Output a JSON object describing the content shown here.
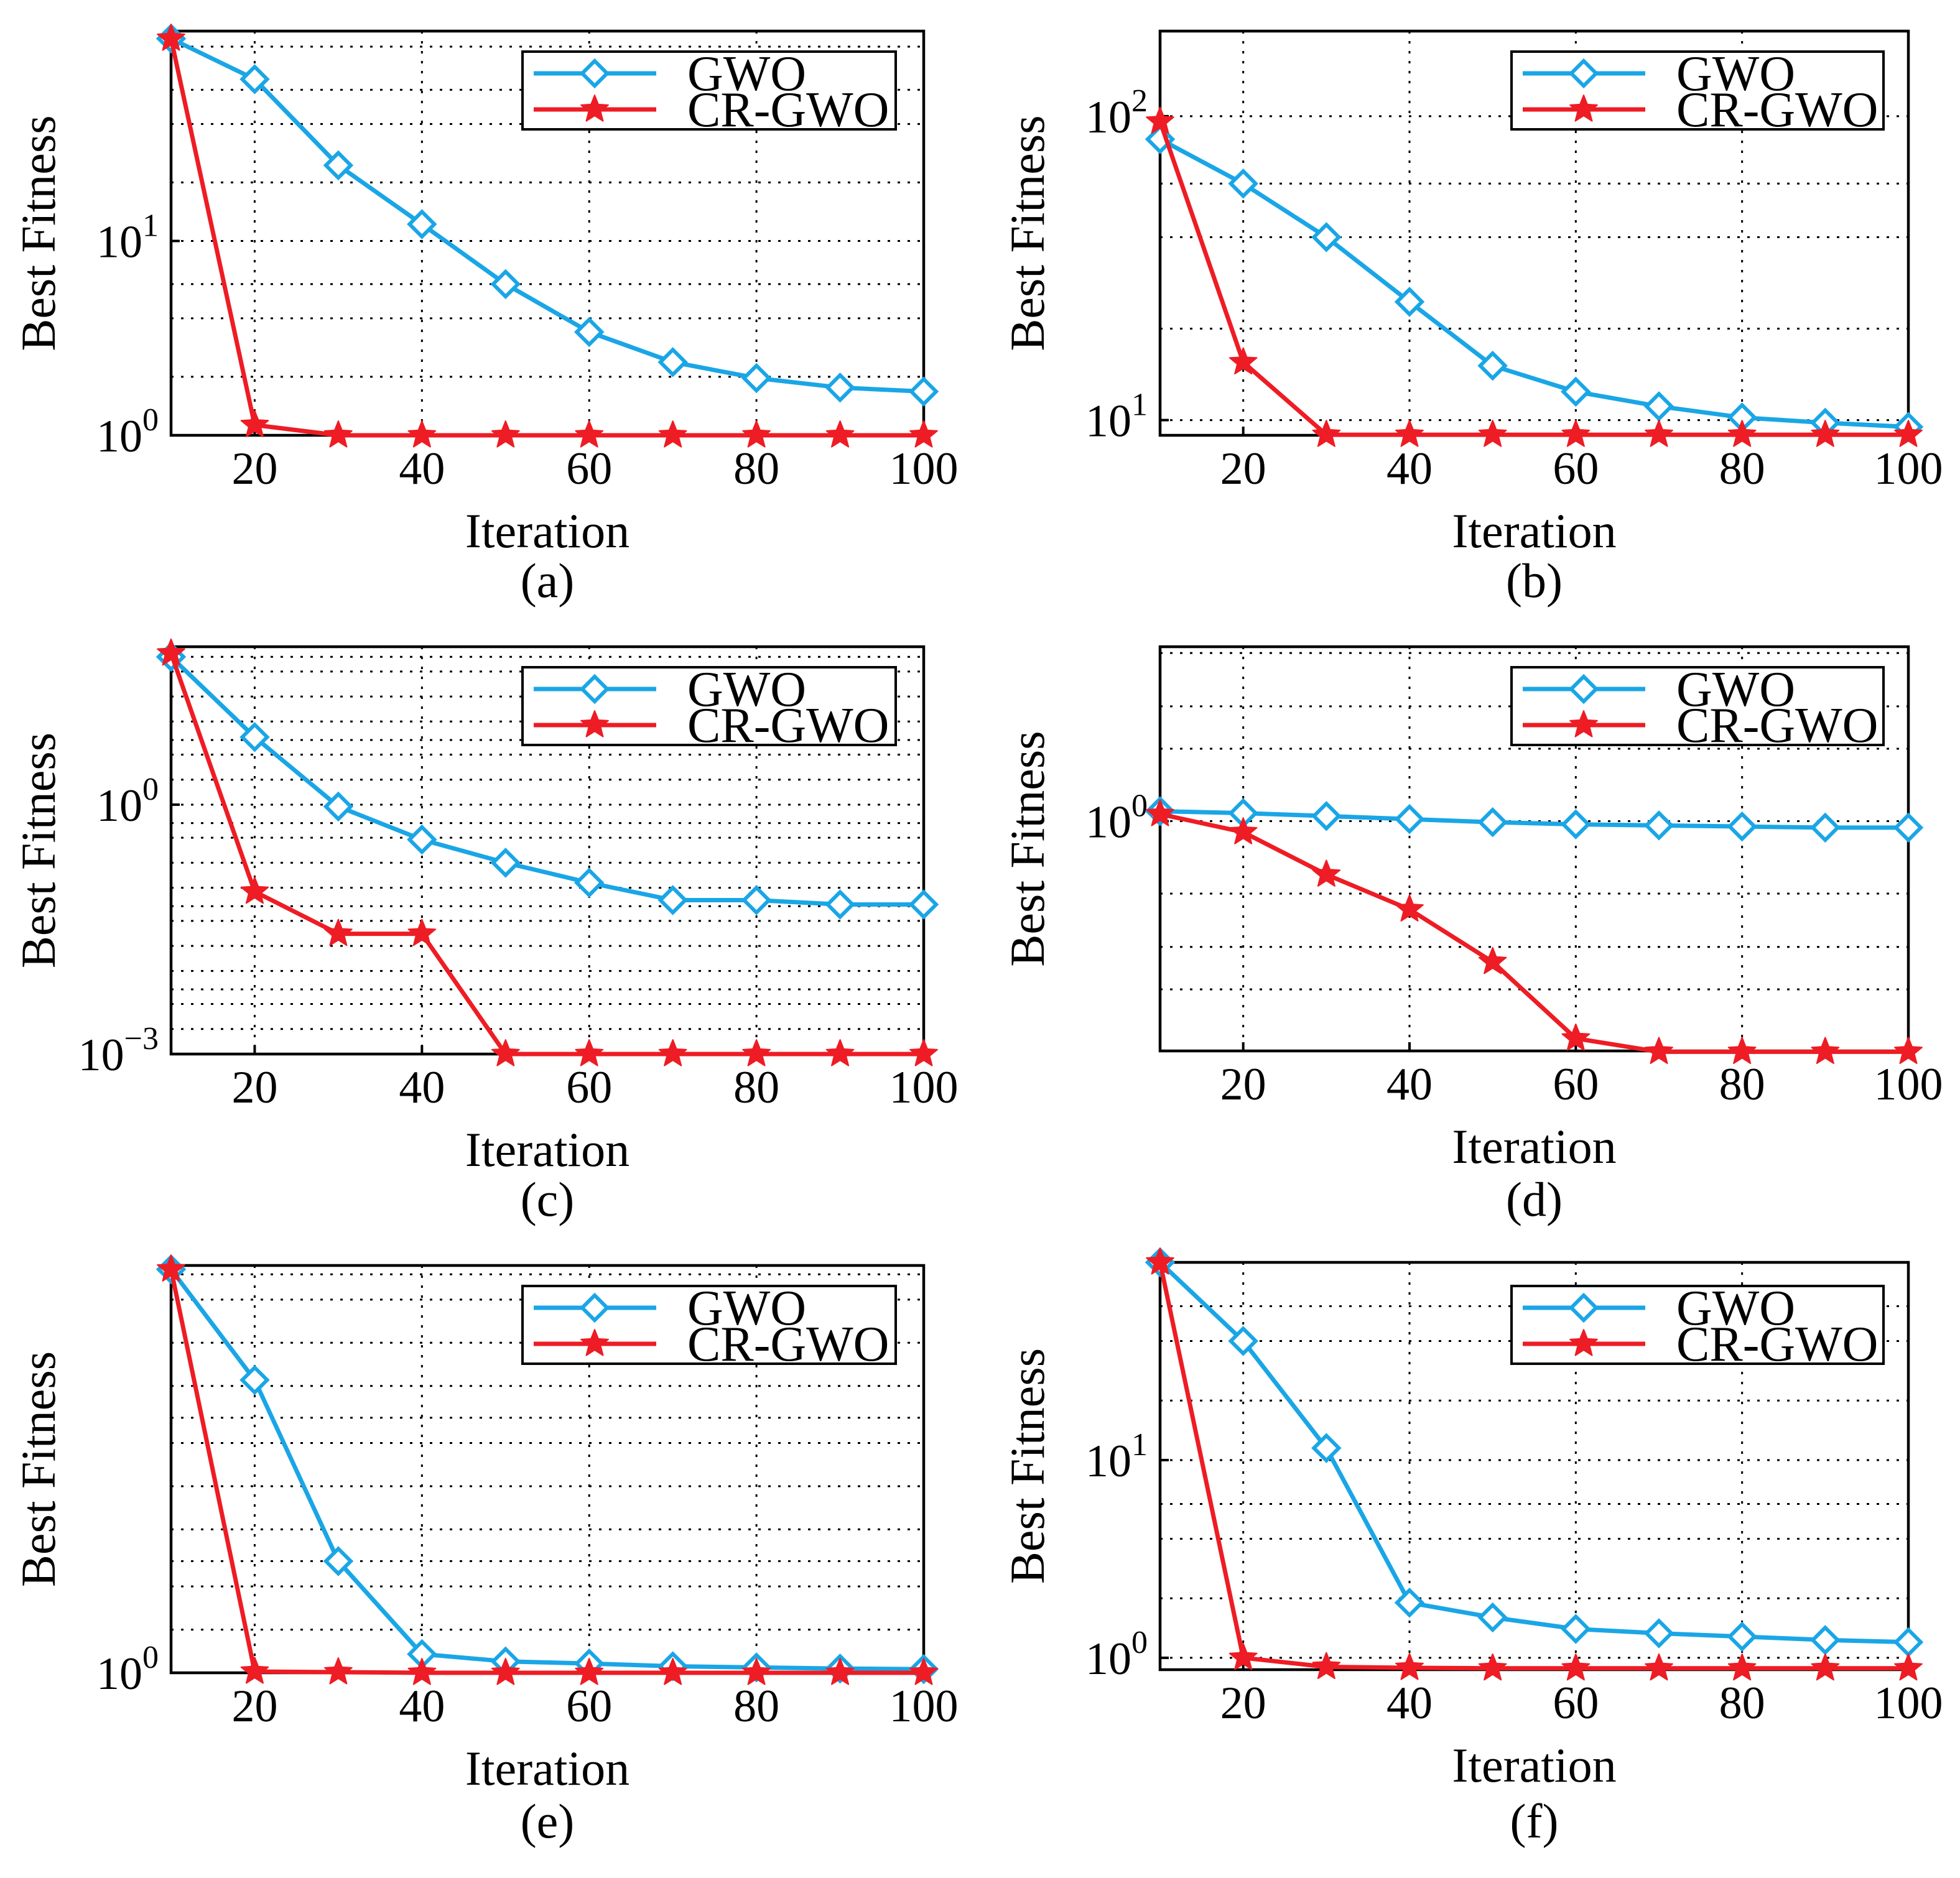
{
  "colors": {
    "gwo": "#1aa6e6",
    "crgwo": "#ee1c24"
  },
  "legend": {
    "items": [
      "GWO",
      "CR-GWO"
    ]
  },
  "chart_data": [
    {
      "id": "a",
      "type": "line",
      "yscale": "log",
      "caption": "(a)",
      "xlabel": "Iteration",
      "ylabel": "Best Fitness",
      "xlim": [
        10,
        100
      ],
      "xticks": [
        20,
        40,
        60,
        80,
        100
      ],
      "ylog": [
        0,
        2.08
      ],
      "ytick_labels": [
        {
          "base": "10",
          "exp": "0",
          "logv": 0
        },
        {
          "base": "10",
          "exp": "1",
          "logv": 1
        }
      ],
      "x": [
        10,
        20,
        30,
        40,
        50,
        60,
        70,
        80,
        90,
        100
      ],
      "series": [
        {
          "name": "GWO",
          "values": [
            110,
            68,
            24.5,
            12.2,
            6.0,
            3.4,
            2.38,
            1.97,
            1.76,
            1.68
          ]
        },
        {
          "name": "CR-GWO",
          "values": [
            110,
            1.13,
            1.0,
            1.0,
            1.0,
            1.0,
            1.0,
            1.0,
            1.0,
            1.0
          ]
        }
      ]
    },
    {
      "id": "b",
      "type": "line",
      "yscale": "log",
      "caption": "(b)",
      "xlabel": "Iteration",
      "ylabel": "Best Fitness",
      "xlim": [
        10,
        100
      ],
      "xticks": [
        20,
        40,
        60,
        80,
        100
      ],
      "ylog": [
        0.95,
        2.28
      ],
      "ytick_labels": [
        {
          "base": "10",
          "exp": "1",
          "logv": 1
        },
        {
          "base": "10",
          "exp": "2",
          "logv": 2
        }
      ],
      "x": [
        10,
        20,
        30,
        40,
        50,
        60,
        70,
        80,
        90,
        100
      ],
      "series": [
        {
          "name": "GWO",
          "values": [
            84,
            60,
            40,
            24.5,
            15.1,
            12.4,
            11.1,
            10.2,
            9.8,
            9.5
          ]
        },
        {
          "name": "CR-GWO",
          "values": [
            96,
            15.5,
            8.95,
            8.95,
            8.95,
            8.95,
            8.95,
            8.95,
            8.95,
            8.95
          ]
        }
      ]
    },
    {
      "id": "c",
      "type": "line",
      "yscale": "log",
      "caption": "(c)",
      "xlabel": "Iteration",
      "ylabel": "Best Fitness",
      "xlim": [
        10,
        100
      ],
      "xticks": [
        20,
        40,
        60,
        80,
        100
      ],
      "ylog": [
        -3,
        1.9
      ],
      "ytick_labels": [
        {
          "base": "10",
          "exp": "−3",
          "logv": -3
        },
        {
          "base": "10",
          "exp": "0",
          "logv": 0
        }
      ],
      "x": [
        10,
        20,
        30,
        40,
        50,
        60,
        70,
        80,
        90,
        100
      ],
      "series": [
        {
          "name": "GWO",
          "values": [
            60,
            6.5,
            0.95,
            0.38,
            0.2,
            0.115,
            0.071,
            0.071,
            0.063,
            0.063
          ]
        },
        {
          "name": "CR-GWO",
          "values": [
            66,
            0.09,
            0.028,
            0.028,
            0.001,
            0.001,
            0.001,
            0.001,
            0.001,
            0.001
          ]
        }
      ]
    },
    {
      "id": "d",
      "type": "line",
      "yscale": "log",
      "caption": "(d)",
      "xlabel": "Iteration",
      "ylabel": "Best Fitness",
      "xlim": [
        10,
        100
      ],
      "xticks": [
        20,
        40,
        60,
        80,
        100
      ],
      "ylog": [
        -0.955,
        0.725
      ],
      "ytick_labels": [
        {
          "base": "10",
          "exp": "0",
          "logv": 0
        }
      ],
      "x": [
        10,
        20,
        30,
        40,
        50,
        60,
        70,
        80,
        90,
        100
      ],
      "series": [
        {
          "name": "GWO",
          "values": [
            1.1,
            1.08,
            1.05,
            1.02,
            0.99,
            0.97,
            0.96,
            0.95,
            0.94,
            0.94
          ]
        },
        {
          "name": "CR-GWO",
          "values": [
            1.07,
            0.9,
            0.6,
            0.43,
            0.26,
            0.125,
            0.11,
            0.11,
            0.11,
            0.11
          ]
        }
      ]
    },
    {
      "id": "e",
      "type": "line",
      "yscale": "log",
      "caption": "(e)",
      "xlabel": "Iteration",
      "ylabel": "Best Fitness",
      "xlim": [
        10,
        100
      ],
      "xticks": [
        20,
        40,
        60,
        80,
        100
      ],
      "ylog": [
        0,
        2.84
      ],
      "ytick_labels": [
        {
          "base": "10",
          "exp": "0",
          "logv": 0
        }
      ],
      "x": [
        10,
        20,
        30,
        40,
        50,
        60,
        70,
        80,
        90,
        100
      ],
      "series": [
        {
          "name": "GWO",
          "values": [
            650,
            110,
            6.0,
            1.35,
            1.2,
            1.16,
            1.11,
            1.09,
            1.07,
            1.06
          ]
        },
        {
          "name": "CR-GWO",
          "values": [
            650,
            1.02,
            1.01,
            1.0,
            1.0,
            1.0,
            1.0,
            1.0,
            1.0,
            1.0
          ]
        }
      ]
    },
    {
      "id": "f",
      "type": "line",
      "yscale": "log",
      "caption": "(f)",
      "xlabel": "Iteration",
      "ylabel": "Best Fitness",
      "xlim": [
        10,
        100
      ],
      "xticks": [
        20,
        40,
        60,
        80,
        100
      ],
      "ylog": [
        -0.06,
        2.0
      ],
      "ytick_labels": [
        {
          "base": "10",
          "exp": "0",
          "logv": 0
        },
        {
          "base": "10",
          "exp": "1",
          "logv": 1
        }
      ],
      "x": [
        10,
        20,
        30,
        40,
        50,
        60,
        70,
        80,
        90,
        100
      ],
      "series": [
        {
          "name": "GWO",
          "values": [
            100,
            40,
            11.5,
            1.9,
            1.6,
            1.4,
            1.33,
            1.28,
            1.23,
            1.2
          ]
        },
        {
          "name": "CR-GWO",
          "values": [
            100,
            1.0,
            0.9,
            0.89,
            0.885,
            0.885,
            0.885,
            0.885,
            0.885,
            0.885
          ]
        }
      ]
    }
  ]
}
